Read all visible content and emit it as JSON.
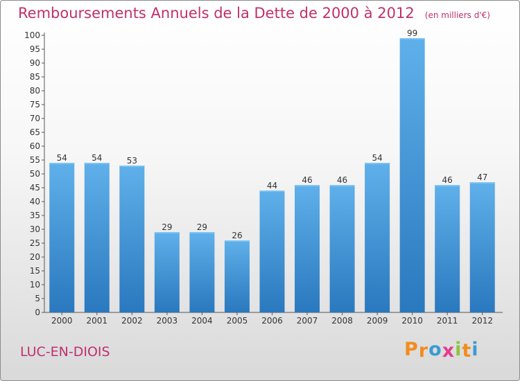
{
  "chart_data": {
    "type": "bar",
    "title": "Remboursements Annuels de la Dette de 2000 à 2012",
    "subtitle": "(en milliers d'€)",
    "categories": [
      "2000",
      "2001",
      "2002",
      "2003",
      "2004",
      "2005",
      "2006",
      "2007",
      "2008",
      "2009",
      "2010",
      "2011",
      "2012"
    ],
    "values": [
      54,
      54,
      53,
      29,
      29,
      26,
      44,
      46,
      46,
      54,
      99,
      46,
      47
    ],
    "ylim": [
      0,
      100
    ],
    "ytick_step": 5,
    "grid": false,
    "bar_color": "#4a9ad8",
    "bar_color_dark": "#2a78be"
  },
  "footer": {
    "commune": "LUC-EN-DIOIS"
  },
  "logo": {
    "letters": [
      "P",
      "r",
      "o",
      "x",
      "i",
      "t",
      "i"
    ],
    "colors": [
      "#f28c1e",
      "#f28c1e",
      "#3a9bd5",
      "#e43d8e",
      "#8cc63f",
      "#f28c1e",
      "#3a9bd5"
    ]
  }
}
